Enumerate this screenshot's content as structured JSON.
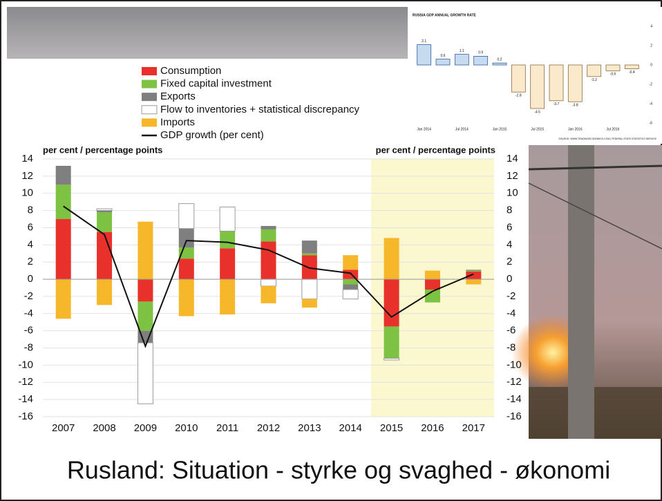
{
  "slide_title": "Rusland: Situation - styrke og svaghed - økonomi",
  "chart_data": [
    {
      "type": "bar",
      "stacked": true,
      "y_label": "per cent / percentage points",
      "y2_label": "per cent / percentage points",
      "categories": [
        "2007",
        "2008",
        "2009",
        "2010",
        "2011",
        "2012",
        "2013",
        "2014",
        "2015",
        "2016",
        "2017"
      ],
      "series": [
        {
          "name": "Consumption",
          "color": "#e8312a",
          "values": [
            7.0,
            5.5,
            -2.6,
            2.4,
            3.6,
            4.4,
            2.8,
            1.1,
            -5.5,
            -1.2,
            0.9
          ]
        },
        {
          "name": "Fixed capital investment",
          "color": "#7dc242",
          "values": [
            4.0,
            2.3,
            -3.4,
            1.3,
            2.0,
            1.4,
            0.2,
            -0.6,
            -3.7,
            -1.5,
            0.1
          ]
        },
        {
          "name": "Exports",
          "color": "#7f7f7f",
          "values": [
            2.2,
            0.2,
            -1.4,
            2.2,
            0,
            0.4,
            1.5,
            -0.6,
            0,
            0,
            0.1
          ]
        },
        {
          "name": "Flow to inventories + statistical discrepancy",
          "color": "#ffffff",
          "values": [
            0,
            0.2,
            -7.1,
            2.9,
            2.8,
            -0.8,
            -2.3,
            -1.1,
            -0.2,
            0,
            0
          ]
        },
        {
          "name": "Imports",
          "color": "#f6b72b",
          "values": [
            -4.6,
            -3.0,
            6.7,
            -4.3,
            -4.1,
            -2.0,
            -1.0,
            1.7,
            4.8,
            1.0,
            -0.6
          ]
        },
        {
          "name": "GDP growth (per cent)",
          "type": "line",
          "color": "#111111",
          "values": [
            8.5,
            5.2,
            -7.8,
            4.5,
            4.3,
            3.4,
            1.3,
            0.7,
            -4.4,
            -1.4,
            0.6
          ]
        }
      ],
      "ylim": [
        -16,
        14
      ],
      "yticks": [
        -16,
        -14,
        -12,
        -10,
        -8,
        -6,
        -4,
        -2,
        0,
        2,
        4,
        6,
        8,
        10,
        12,
        14
      ],
      "y2lim": [
        -16,
        14
      ],
      "y2ticks": [
        -16,
        -14,
        -12,
        -10,
        -8,
        -6,
        -4,
        -2,
        0,
        2,
        4,
        6,
        8,
        10,
        12,
        14
      ],
      "grid": true,
      "shade": {
        "from": "2015",
        "color": "#fbf7cf"
      }
    },
    {
      "type": "bar",
      "title": "RUSSIA GDP ANNUAL GROWTH RATE",
      "source": "SOURCE: WWW.TRADINGECONOMICS.COM | FEDERAL STATE STATISTICS SERVICE",
      "categories": [
        "Jan 2014",
        null,
        "Jul 2014",
        null,
        "Jan 2015",
        null,
        "Jul 2015",
        null,
        "Jan 2016",
        null,
        "Jul 2016",
        null
      ],
      "values": [
        2.1,
        0.6,
        1.1,
        0.9,
        0.2,
        -2.8,
        -4.5,
        -3.7,
        -3.8,
        -1.2,
        -0.6,
        -0.4
      ],
      "color": "#c6dbef",
      "negative_color": "#fbe9cc",
      "ylim": [
        -6,
        4
      ],
      "yticks": [
        -6,
        -4,
        -2,
        0,
        2,
        4
      ],
      "grid": false
    }
  ]
}
